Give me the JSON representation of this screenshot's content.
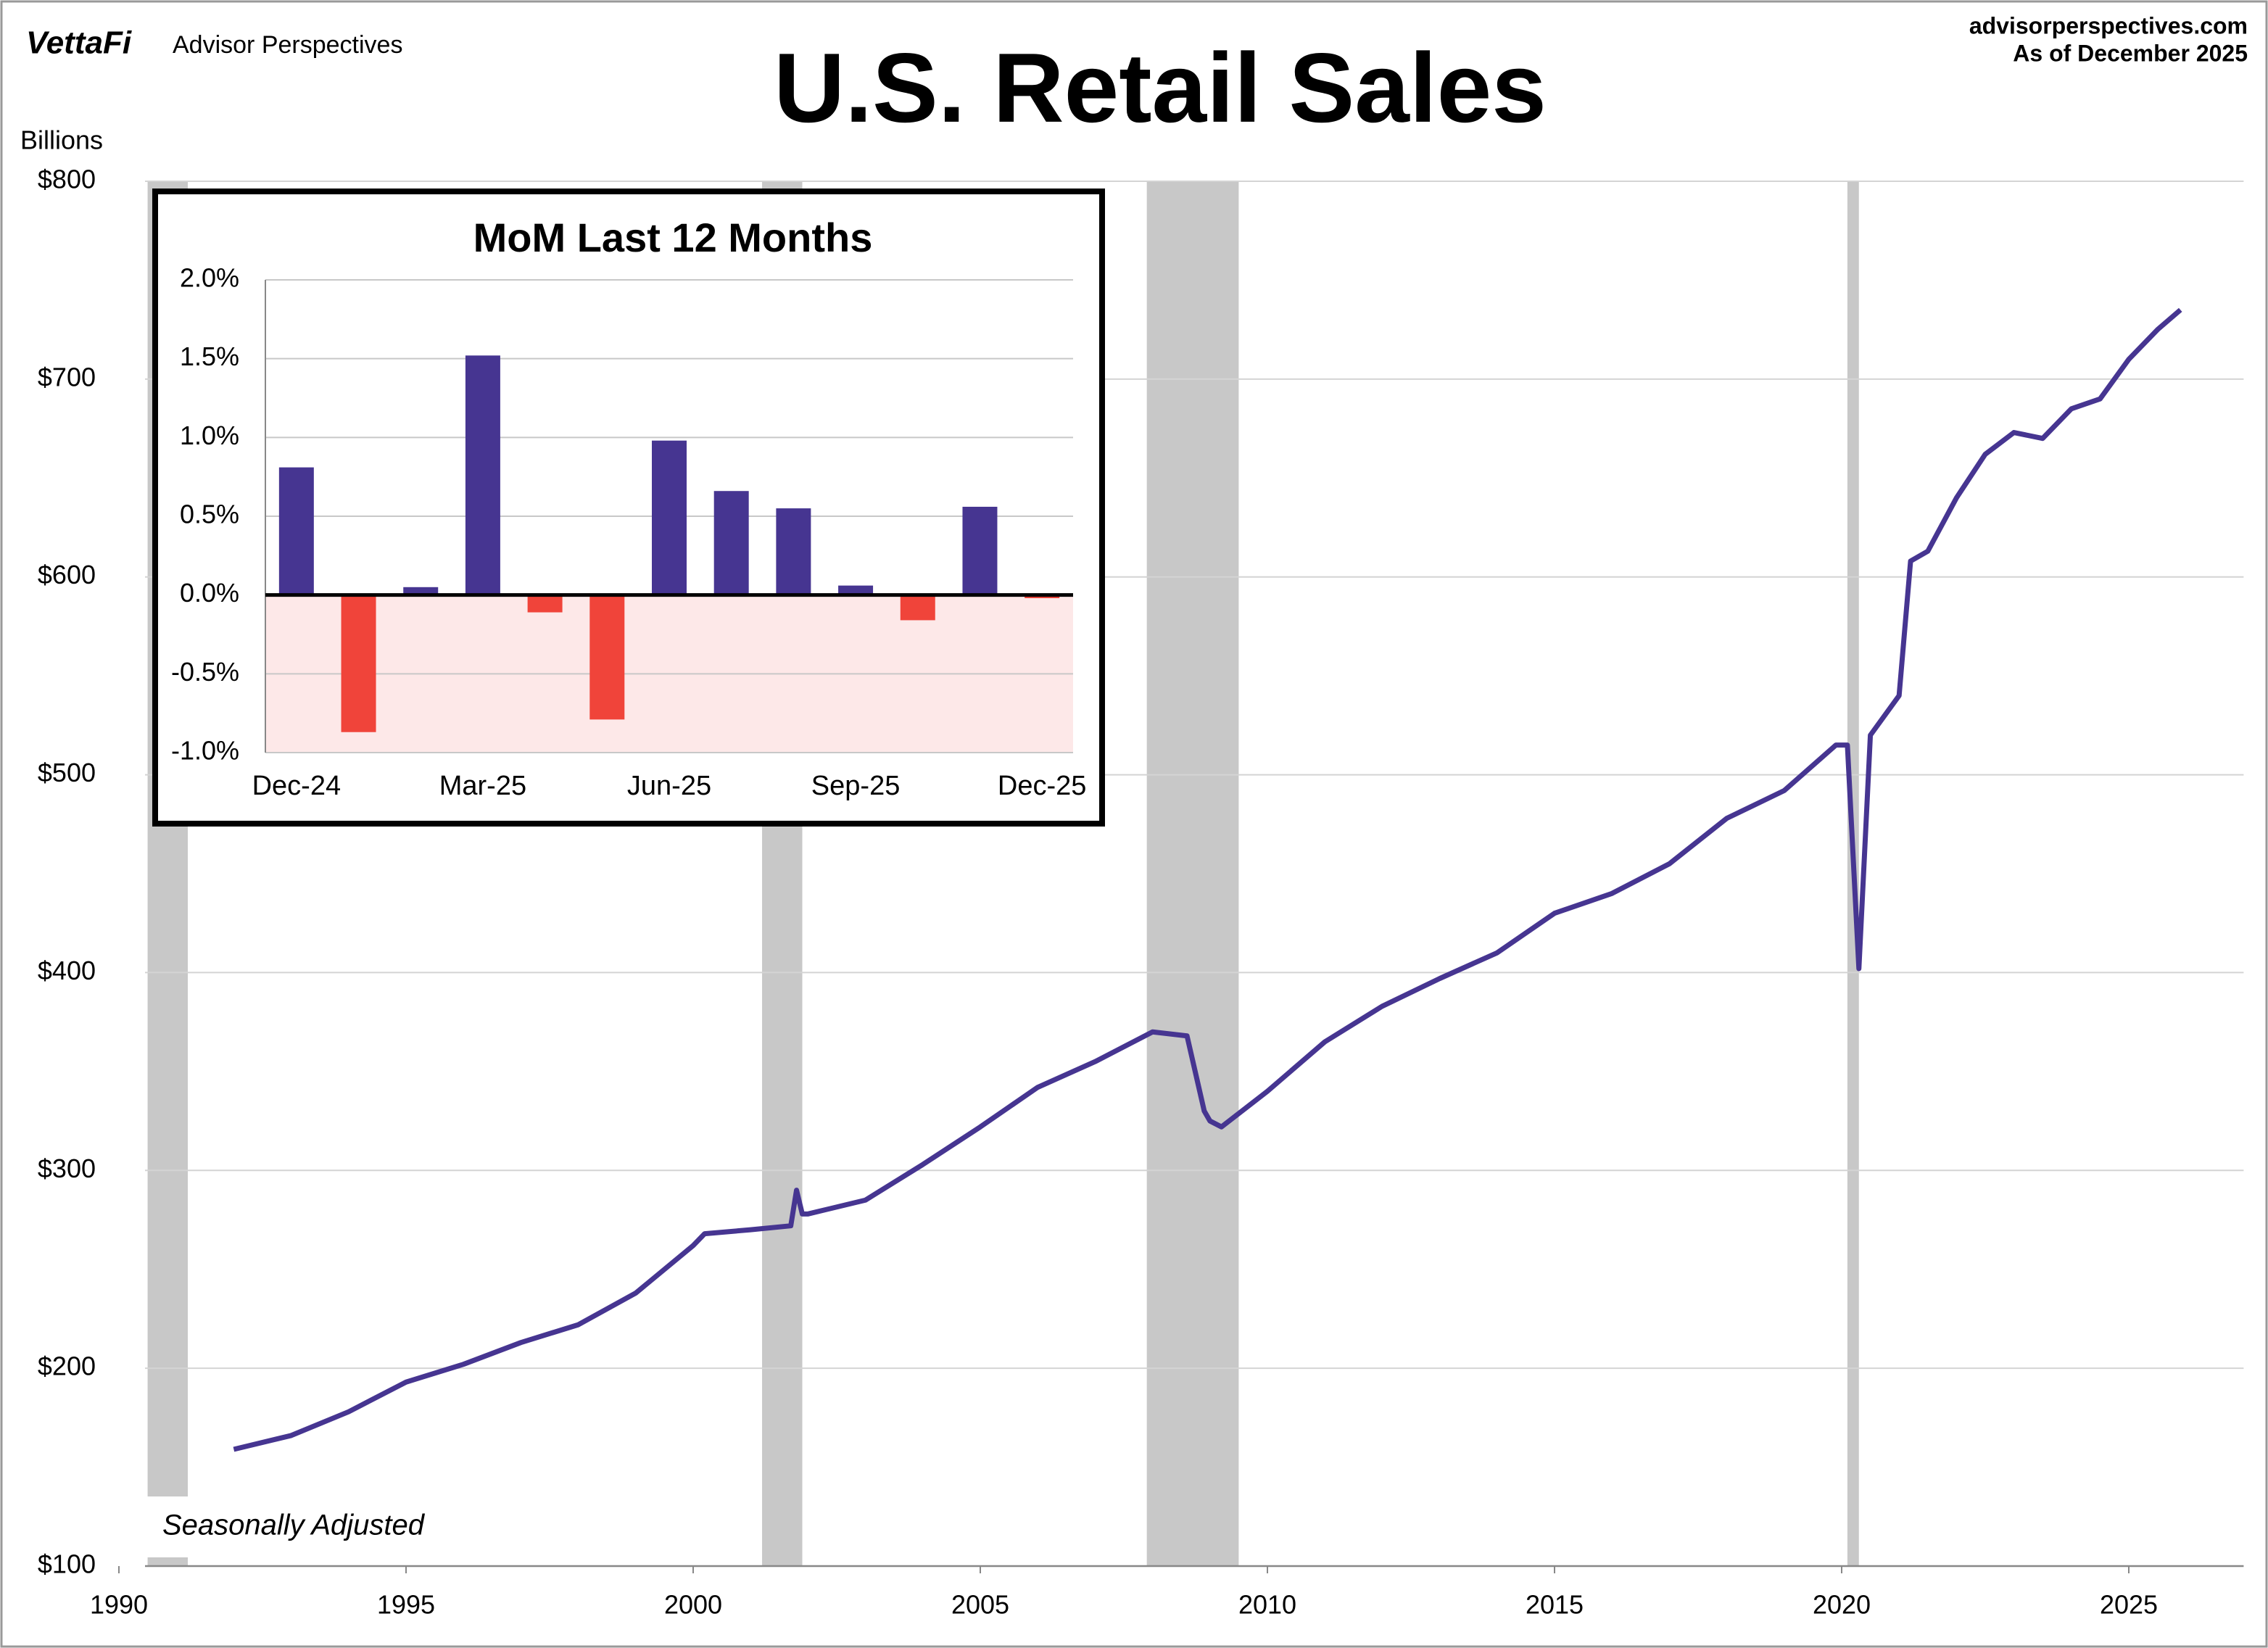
{
  "chart_data": [
    {
      "type": "line",
      "title": "U.S. Retail Sales",
      "brand": "VettaFi",
      "publisher": "Advisor Perspectives",
      "source": "advisorperspectives.com",
      "date_note": "As of December 2025",
      "y_label": "Billions",
      "note": "Seasonally Adjusted",
      "xlim": [
        1990,
        2027
      ],
      "xticks": [
        1990,
        1995,
        2000,
        2005,
        2010,
        2015,
        2020,
        2025
      ],
      "ylim": [
        100,
        800
      ],
      "yticks": [
        {
          "value": 100,
          "label": "$100"
        },
        {
          "value": 200,
          "label": "$200"
        },
        {
          "value": 300,
          "label": "$300"
        },
        {
          "value": 400,
          "label": "$400"
        },
        {
          "value": 500,
          "label": "$500"
        },
        {
          "value": 600,
          "label": "$600"
        },
        {
          "value": 700,
          "label": "$700"
        },
        {
          "value": 800,
          "label": "$800"
        }
      ],
      "grid": true,
      "recessions": [
        [
          1990.5,
          1991.2
        ],
        [
          2001.2,
          2001.9
        ],
        [
          2007.9,
          2009.5
        ],
        [
          2020.1,
          2020.3
        ]
      ],
      "recession_color": "#c8c8c8",
      "series": [
        {
          "name": "Retail Sales",
          "color": "#463591",
          "x": [
            1992.0,
            1993.0,
            1994.0,
            1995.0,
            1996.0,
            1997.0,
            1998.0,
            1999.0,
            2000.0,
            2000.2,
            2001.0,
            2001.7,
            2001.8,
            2001.9,
            2002.0,
            2003.0,
            2004.0,
            2005.0,
            2006.0,
            2007.0,
            2008.0,
            2008.6,
            2008.9,
            2009.0,
            2009.2,
            2010.0,
            2011.0,
            2012.0,
            2013.0,
            2014.0,
            2015.0,
            2016.0,
            2017.0,
            2018.0,
            2019.0,
            2019.9,
            2020.1,
            2020.3,
            2020.5,
            2021.0,
            2021.2,
            2021.5,
            2022.0,
            2022.5,
            2023.0,
            2023.5,
            2024.0,
            2024.5,
            2025.0,
            2025.5,
            2025.9
          ],
          "values": [
            159,
            166,
            178,
            193,
            202,
            213,
            222,
            238,
            262,
            268,
            270,
            272,
            290,
            278,
            278,
            285,
            303,
            322,
            342,
            355,
            370,
            368,
            330,
            325,
            322,
            340,
            365,
            383,
            397,
            410,
            430,
            440,
            455,
            478,
            492,
            515,
            515,
            402,
            520,
            540,
            608,
            613,
            640,
            662,
            673,
            670,
            685,
            690,
            710,
            725,
            735
          ]
        }
      ]
    },
    {
      "type": "bar",
      "title": "MoM Last 12 Months",
      "categories": [
        "Dec-24",
        null,
        null,
        "Mar-25",
        null,
        null,
        "Jun-25",
        null,
        null,
        "Sep-25",
        null,
        null,
        "Dec-25"
      ],
      "values": [
        0.81,
        -0.87,
        0.05,
        1.52,
        -0.11,
        -0.79,
        0.98,
        0.66,
        0.55,
        0.06,
        -0.16,
        0.56,
        -0.02
      ],
      "positive_color": "#463591",
      "negative_color": "#f0443a",
      "negative_shade": "#fde8e8",
      "ylim": [
        -1,
        2
      ],
      "yticks": [
        {
          "value": -1,
          "label": "-1.0%"
        },
        {
          "value": -0.5,
          "label": "-0.5%"
        },
        {
          "value": 0,
          "label": "0.0%"
        },
        {
          "value": 0.5,
          "label": "0.5%"
        },
        {
          "value": 1,
          "label": "1.0%"
        },
        {
          "value": 1.5,
          "label": "1.5%"
        },
        {
          "value": 2,
          "label": "2.0%"
        }
      ],
      "grid": true
    }
  ]
}
